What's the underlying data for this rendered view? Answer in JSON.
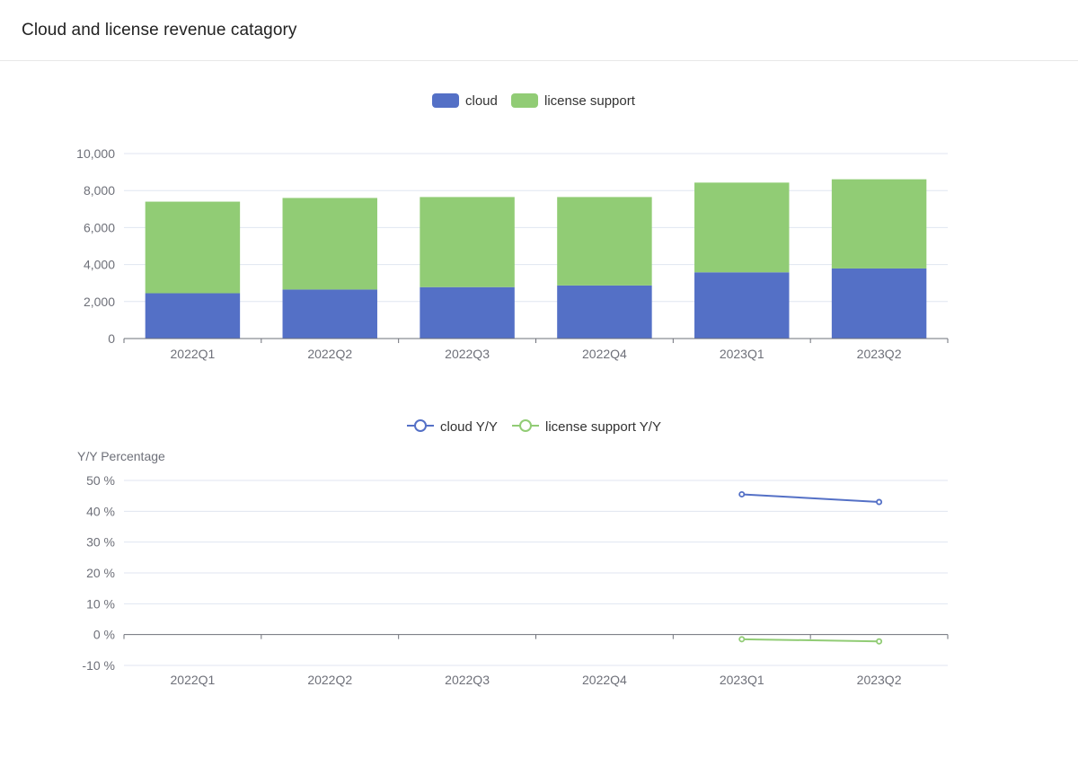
{
  "panel": {
    "title": "Cloud and license revenue catagory"
  },
  "colors": {
    "cloud": "#5470c6",
    "license_support": "#91cc75"
  },
  "chart_data": [
    {
      "type": "bar",
      "stacked": true,
      "categories": [
        "2022Q1",
        "2022Q2",
        "2022Q3",
        "2022Q4",
        "2023Q1",
        "2023Q2"
      ],
      "series": [
        {
          "name": "cloud",
          "values": [
            2450,
            2650,
            2780,
            2870,
            3580,
            3790
          ],
          "color": "#5470c6"
        },
        {
          "name": "license support",
          "values": [
            4950,
            4950,
            4870,
            4780,
            4850,
            4820
          ],
          "color": "#91cc75"
        }
      ],
      "yticks": [
        "0",
        "2,000",
        "4,000",
        "6,000",
        "8,000",
        "10,000"
      ],
      "ylim": [
        0,
        10000
      ],
      "grid": true,
      "legend": "top-center"
    },
    {
      "type": "line",
      "categories": [
        "2022Q1",
        "2022Q2",
        "2022Q3",
        "2022Q4",
        "2023Q1",
        "2023Q2"
      ],
      "series": [
        {
          "name": "cloud Y/Y",
          "values": [
            null,
            null,
            null,
            null,
            45.5,
            43
          ],
          "color": "#5470c6"
        },
        {
          "name": "license support Y/Y",
          "values": [
            null,
            null,
            null,
            null,
            -1.5,
            -2.2
          ],
          "color": "#91cc75"
        }
      ],
      "ylabel": "Y/Y Percentage",
      "yticks": [
        "-10 %",
        "0 %",
        "10 %",
        "20 %",
        "30 %",
        "40 %",
        "50 %"
      ],
      "ylim": [
        -10,
        50
      ],
      "grid": true,
      "legend": "top-center"
    }
  ]
}
